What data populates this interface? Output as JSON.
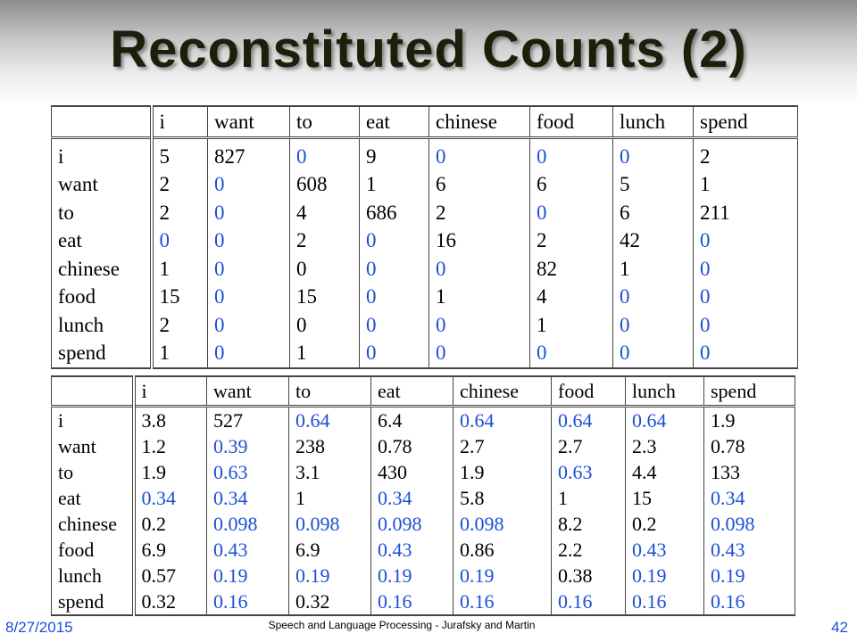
{
  "title": "Reconstituted Counts (2)",
  "colors": {
    "zero_smoothed": "#1a4fd8",
    "normal": "#000000"
  },
  "table1": {
    "headers": [
      "i",
      "want",
      "to",
      "eat",
      "chinese",
      "food",
      "lunch",
      "spend"
    ],
    "rows": [
      {
        "label": "i",
        "cells": [
          {
            "v": "5",
            "b": false
          },
          {
            "v": "827",
            "b": false
          },
          {
            "v": "0",
            "b": true
          },
          {
            "v": "9",
            "b": false
          },
          {
            "v": "0",
            "b": true
          },
          {
            "v": "0",
            "b": true
          },
          {
            "v": "0",
            "b": true
          },
          {
            "v": "2",
            "b": false
          }
        ]
      },
      {
        "label": "want",
        "cells": [
          {
            "v": "2",
            "b": false
          },
          {
            "v": "0",
            "b": true
          },
          {
            "v": "608",
            "b": false
          },
          {
            "v": "1",
            "b": false
          },
          {
            "v": "6",
            "b": false
          },
          {
            "v": "6",
            "b": false
          },
          {
            "v": "5",
            "b": false
          },
          {
            "v": "1",
            "b": false
          }
        ]
      },
      {
        "label": "to",
        "cells": [
          {
            "v": "2",
            "b": false
          },
          {
            "v": "0",
            "b": true
          },
          {
            "v": "4",
            "b": false
          },
          {
            "v": "686",
            "b": false
          },
          {
            "v": "2",
            "b": false
          },
          {
            "v": "0",
            "b": true
          },
          {
            "v": "6",
            "b": false
          },
          {
            "v": "211",
            "b": false
          }
        ]
      },
      {
        "label": "eat",
        "cells": [
          {
            "v": "0",
            "b": true
          },
          {
            "v": "0",
            "b": true
          },
          {
            "v": "2",
            "b": false
          },
          {
            "v": "0",
            "b": true
          },
          {
            "v": "16",
            "b": false
          },
          {
            "v": "2",
            "b": false
          },
          {
            "v": "42",
            "b": false
          },
          {
            "v": "0",
            "b": true
          }
        ]
      },
      {
        "label": "chinese",
        "cells": [
          {
            "v": "1",
            "b": false
          },
          {
            "v": "0",
            "b": true
          },
          {
            "v": "0",
            "b": false
          },
          {
            "v": "0",
            "b": true
          },
          {
            "v": "0",
            "b": true
          },
          {
            "v": "82",
            "b": false
          },
          {
            "v": "1",
            "b": false
          },
          {
            "v": "0",
            "b": true
          }
        ]
      },
      {
        "label": "food",
        "cells": [
          {
            "v": "15",
            "b": false
          },
          {
            "v": "0",
            "b": true
          },
          {
            "v": "15",
            "b": false
          },
          {
            "v": "0",
            "b": true
          },
          {
            "v": "1",
            "b": false
          },
          {
            "v": "4",
            "b": false
          },
          {
            "v": "0",
            "b": true
          },
          {
            "v": "0",
            "b": true
          }
        ]
      },
      {
        "label": "lunch",
        "cells": [
          {
            "v": "2",
            "b": false
          },
          {
            "v": "0",
            "b": true
          },
          {
            "v": "0",
            "b": false
          },
          {
            "v": "0",
            "b": true
          },
          {
            "v": "0",
            "b": true
          },
          {
            "v": "1",
            "b": false
          },
          {
            "v": "0",
            "b": true
          },
          {
            "v": "0",
            "b": true
          }
        ]
      },
      {
        "label": "spend",
        "cells": [
          {
            "v": "1",
            "b": false
          },
          {
            "v": "0",
            "b": true
          },
          {
            "v": "1",
            "b": false
          },
          {
            "v": "0",
            "b": true
          },
          {
            "v": "0",
            "b": true
          },
          {
            "v": "0",
            "b": true
          },
          {
            "v": "0",
            "b": true
          },
          {
            "v": "0",
            "b": true
          }
        ]
      }
    ]
  },
  "table2": {
    "headers": [
      "i",
      "want",
      "to",
      "eat",
      "chinese",
      "food",
      "lunch",
      "spend"
    ],
    "rows": [
      {
        "label": "i",
        "cells": [
          {
            "v": "3.8",
            "b": false
          },
          {
            "v": "527",
            "b": false
          },
          {
            "v": "0.64",
            "b": true
          },
          {
            "v": "6.4",
            "b": false
          },
          {
            "v": "0.64",
            "b": true
          },
          {
            "v": "0.64",
            "b": true
          },
          {
            "v": "0.64",
            "b": true
          },
          {
            "v": "1.9",
            "b": false
          }
        ]
      },
      {
        "label": "want",
        "cells": [
          {
            "v": "1.2",
            "b": false
          },
          {
            "v": "0.39",
            "b": true
          },
          {
            "v": "238",
            "b": false
          },
          {
            "v": "0.78",
            "b": false
          },
          {
            "v": "2.7",
            "b": false
          },
          {
            "v": "2.7",
            "b": false
          },
          {
            "v": "2.3",
            "b": false
          },
          {
            "v": "0.78",
            "b": false
          }
        ]
      },
      {
        "label": "to",
        "cells": [
          {
            "v": "1.9",
            "b": false
          },
          {
            "v": "0.63",
            "b": true
          },
          {
            "v": "3.1",
            "b": false
          },
          {
            "v": "430",
            "b": false
          },
          {
            "v": "1.9",
            "b": false
          },
          {
            "v": "0.63",
            "b": true
          },
          {
            "v": "4.4",
            "b": false
          },
          {
            "v": "133",
            "b": false
          }
        ]
      },
      {
        "label": "eat",
        "cells": [
          {
            "v": "0.34",
            "b": true
          },
          {
            "v": "0.34",
            "b": true
          },
          {
            "v": "1",
            "b": false
          },
          {
            "v": "0.34",
            "b": true
          },
          {
            "v": "5.8",
            "b": false
          },
          {
            "v": "1",
            "b": false
          },
          {
            "v": "15",
            "b": false
          },
          {
            "v": "0.34",
            "b": true
          }
        ]
      },
      {
        "label": "chinese",
        "cells": [
          {
            "v": "0.2",
            "b": false
          },
          {
            "v": "0.098",
            "b": true
          },
          {
            "v": "0.098",
            "b": true
          },
          {
            "v": "0.098",
            "b": true
          },
          {
            "v": "0.098",
            "b": true
          },
          {
            "v": "8.2",
            "b": false
          },
          {
            "v": "0.2",
            "b": false
          },
          {
            "v": "0.098",
            "b": true
          }
        ]
      },
      {
        "label": "food",
        "cells": [
          {
            "v": "6.9",
            "b": false
          },
          {
            "v": "0.43",
            "b": true
          },
          {
            "v": "6.9",
            "b": false
          },
          {
            "v": "0.43",
            "b": true
          },
          {
            "v": "0.86",
            "b": false
          },
          {
            "v": "2.2",
            "b": false
          },
          {
            "v": "0.43",
            "b": true
          },
          {
            "v": "0.43",
            "b": true
          }
        ]
      },
      {
        "label": "lunch",
        "cells": [
          {
            "v": "0.57",
            "b": false
          },
          {
            "v": "0.19",
            "b": true
          },
          {
            "v": "0.19",
            "b": true
          },
          {
            "v": "0.19",
            "b": true
          },
          {
            "v": "0.19",
            "b": true
          },
          {
            "v": "0.38",
            "b": false
          },
          {
            "v": "0.19",
            "b": true
          },
          {
            "v": "0.19",
            "b": true
          }
        ]
      },
      {
        "label": "spend",
        "cells": [
          {
            "v": "0.32",
            "b": false
          },
          {
            "v": "0.16",
            "b": true
          },
          {
            "v": "0.32",
            "b": false
          },
          {
            "v": "0.16",
            "b": true
          },
          {
            "v": "0.16",
            "b": true
          },
          {
            "v": "0.16",
            "b": true
          },
          {
            "v": "0.16",
            "b": true
          },
          {
            "v": "0.16",
            "b": true
          }
        ]
      }
    ]
  },
  "footer": {
    "date": "8/27/2015",
    "center": "Speech and Language Processing - Jurafsky and Martin",
    "page": "42"
  }
}
